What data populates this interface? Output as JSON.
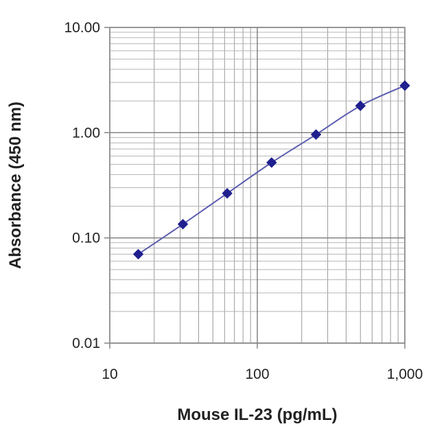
{
  "chart_data": {
    "type": "scatter",
    "title": "",
    "xlabel": "Mouse IL-23 (pg/mL)",
    "ylabel": "Absorbance (450 nm)",
    "x_scale": "log",
    "y_scale": "log",
    "xlim": [
      10,
      1000
    ],
    "ylim": [
      0.01,
      10
    ],
    "x_ticks": [
      10,
      100,
      1000
    ],
    "x_tick_labels": [
      "10",
      "100",
      "1,000"
    ],
    "y_ticks": [
      10,
      1,
      0.1,
      0.01
    ],
    "y_tick_labels": [
      "10.00",
      "1.00",
      "0.10",
      "0.01"
    ],
    "grid": true,
    "legend": "none",
    "series": [
      {
        "marker": "diamond",
        "fit_line": true,
        "color": "#1f1f8f",
        "line_color": "#5b5bb0",
        "x": [
          15.6,
          31.3,
          62.5,
          125,
          250,
          500,
          1000
        ],
        "y": [
          0.07,
          0.135,
          0.265,
          0.52,
          0.96,
          1.8,
          2.8
        ]
      }
    ]
  }
}
